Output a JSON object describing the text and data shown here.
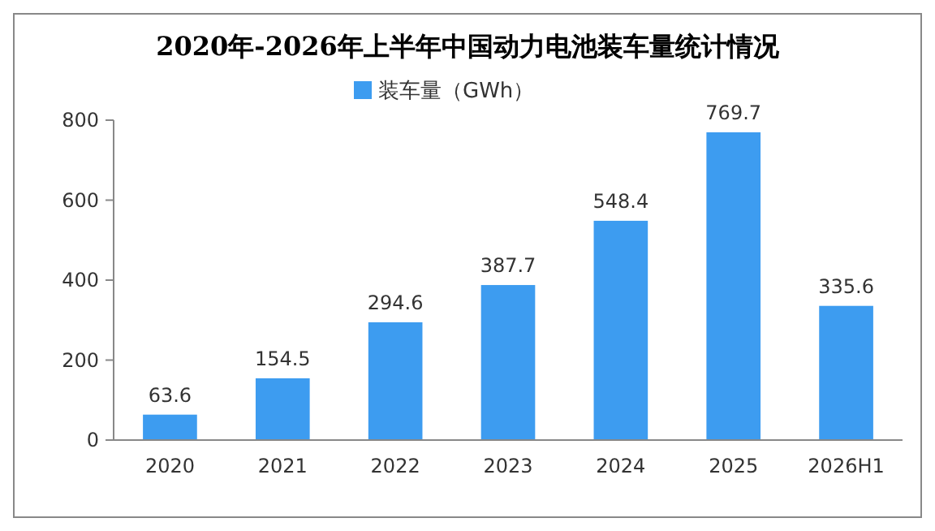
{
  "chart_data": {
    "type": "bar",
    "title": "2020年-2026年上半年中国动力电池装车量统计情况",
    "categories": [
      "2020",
      "2021",
      "2022",
      "2023",
      "2024",
      "2025",
      "2026H1"
    ],
    "series": [
      {
        "name": "装车量（GWh）",
        "color": "#3d9cf0",
        "values": [
          63.6,
          154.5,
          294.6,
          387.7,
          548.4,
          769.7,
          335.6
        ]
      }
    ],
    "ylim": [
      0,
      800
    ],
    "yticks": [
      0,
      200,
      400,
      600,
      800
    ],
    "grid": false,
    "legend": "top",
    "data_labels": true
  }
}
